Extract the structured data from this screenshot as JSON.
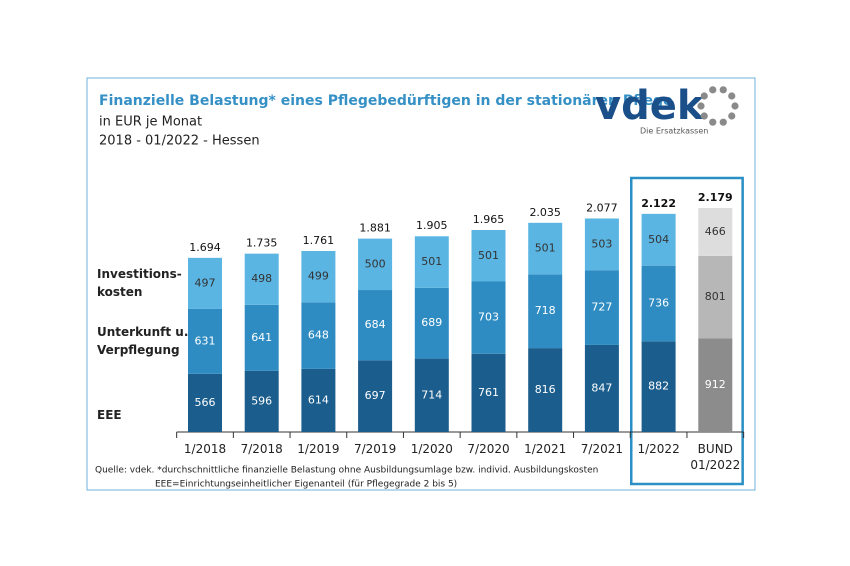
{
  "chart_data": {
    "type": "stacked_bar",
    "title": "Finanzielle Belastung* eines Pflegebedürftigen in der stationären Pflege",
    "subtitle": "in EUR je Monat",
    "subtitle2": "2018 - 01/2022 - Hessen",
    "logo": {
      "text": "vdek",
      "tagline": "Die Ersatzkassen"
    },
    "categories": [
      "1/2018",
      "7/2018",
      "1/2019",
      "7/2019",
      "1/2020",
      "7/2020",
      "1/2021",
      "7/2021",
      "1/2022",
      "BUND\n01/2022"
    ],
    "series": [
      {
        "name": "EEE",
        "values": [
          566,
          596,
          614,
          697,
          714,
          761,
          816,
          847,
          882,
          912
        ],
        "colors": [
          "#1b5d8c",
          "#1b5d8c",
          "#1b5d8c",
          "#1b5d8c",
          "#1b5d8c",
          "#1b5d8c",
          "#1b5d8c",
          "#1b5d8c",
          "#1b5d8c",
          "#8c8c8c"
        ]
      },
      {
        "name": "Unterkunft u.\nVerpflegung",
        "values": [
          631,
          641,
          648,
          684,
          689,
          703,
          718,
          727,
          736,
          801
        ],
        "colors": [
          "#2f8cc2",
          "#2f8cc2",
          "#2f8cc2",
          "#2f8cc2",
          "#2f8cc2",
          "#2f8cc2",
          "#2f8cc2",
          "#2f8cc2",
          "#2f8cc2",
          "#b7b7b7"
        ]
      },
      {
        "name": "Investitions-\nkosten",
        "values": [
          497,
          498,
          499,
          500,
          501,
          501,
          501,
          503,
          504,
          466
        ],
        "colors": [
          "#5bb5e2",
          "#5bb5e2",
          "#5bb5e2",
          "#5bb5e2",
          "#5bb5e2",
          "#5bb5e2",
          "#5bb5e2",
          "#5bb5e2",
          "#5bb5e2",
          "#dddddd"
        ]
      }
    ],
    "totals": {
      "values": [
        1694,
        1735,
        1761,
        1881,
        1905,
        1965,
        2035,
        2077,
        2122,
        2179
      ],
      "value_labels": [
        "1.694",
        "1.735",
        "1.761",
        "1.881",
        "1.905",
        "1.965",
        "2.035",
        "2.077",
        "2.122",
        "2.179"
      ]
    },
    "highlight": [
      8,
      9
    ],
    "footnotes": [
      "Quelle: vdek. *durchschnittliche finanzielle Belastung ohne Ausbildungsumlage bzw. individ. Ausbildungskosten",
      "EEE=Einrichtungseinheitlicher Eigenanteil (für Pflegegrade 2 bis 5)"
    ]
  }
}
